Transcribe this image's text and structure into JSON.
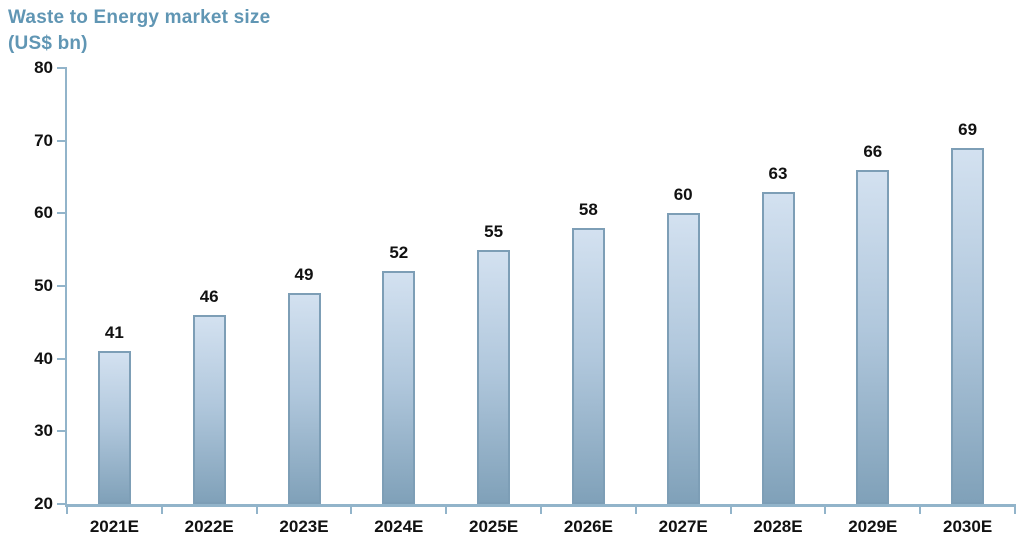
{
  "chart_data": {
    "type": "bar",
    "title": "Waste to Energy market size",
    "subtitle": "(US$ bn)",
    "categories": [
      "2021E",
      "2022E",
      "2023E",
      "2024E",
      "2025E",
      "2026E",
      "2027E",
      "2028E",
      "2029E",
      "2030E"
    ],
    "values": [
      41,
      46,
      49,
      52,
      55,
      58,
      60,
      63,
      66,
      69
    ],
    "xlabel": "",
    "ylabel": "",
    "ylim": [
      20,
      80
    ],
    "yticks": [
      20,
      30,
      40,
      50,
      60,
      70,
      80
    ],
    "grid": false,
    "legend": "none",
    "value_labels": true,
    "colors": {
      "title": "#6096b4",
      "axis": "#92b4ca",
      "bar_fill_top": "#d3e1f0",
      "bar_fill_mid": "#b0c7dc",
      "bar_fill_bottom": "#80a1b9",
      "bar_border": "#7d9eb6",
      "text": "#111111"
    }
  }
}
